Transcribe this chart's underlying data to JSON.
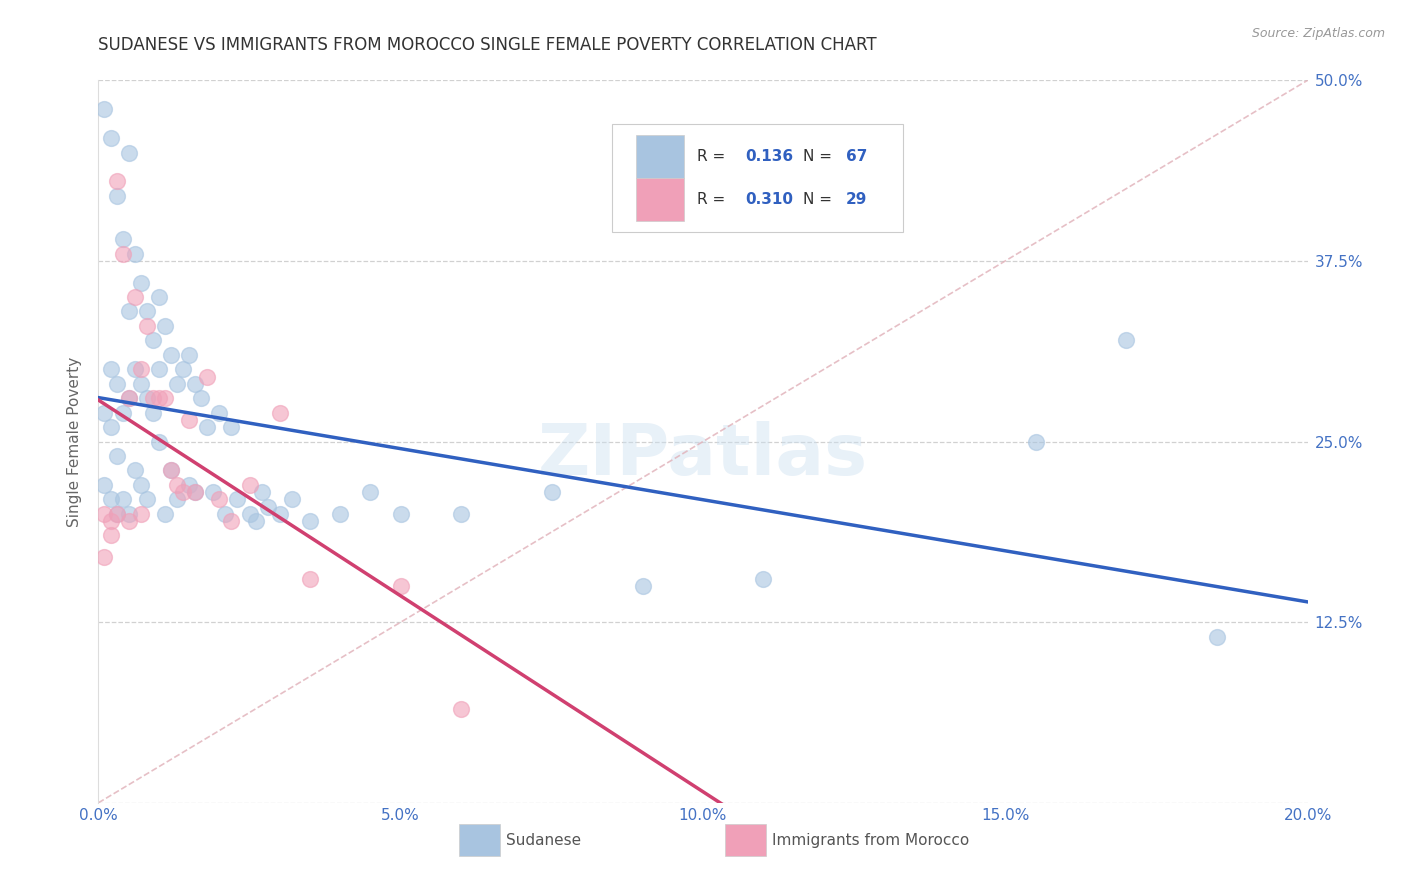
{
  "title": "SUDANESE VS IMMIGRANTS FROM MOROCCO SINGLE FEMALE POVERTY CORRELATION CHART",
  "source": "Source: ZipAtlas.com",
  "ylabel_label": "Single Female Poverty",
  "watermark": "ZIPatlas",
  "legend_label1": "Sudanese",
  "legend_label2": "Immigrants from Morocco",
  "color_sudanese": "#a8c4e0",
  "color_morocco": "#f0a0b8",
  "color_line_sudanese": "#3060c0",
  "color_line_morocco": "#d04070",
  "color_diag": "#e0b0b8",
  "sudanese_x": [
    0.001,
    0.001,
    0.001,
    0.002,
    0.002,
    0.002,
    0.002,
    0.003,
    0.003,
    0.003,
    0.003,
    0.004,
    0.004,
    0.004,
    0.005,
    0.005,
    0.005,
    0.005,
    0.006,
    0.006,
    0.006,
    0.007,
    0.007,
    0.007,
    0.008,
    0.008,
    0.008,
    0.009,
    0.009,
    0.01,
    0.01,
    0.01,
    0.011,
    0.011,
    0.012,
    0.012,
    0.013,
    0.013,
    0.014,
    0.015,
    0.015,
    0.016,
    0.016,
    0.017,
    0.018,
    0.019,
    0.02,
    0.021,
    0.022,
    0.023,
    0.025,
    0.026,
    0.027,
    0.028,
    0.03,
    0.032,
    0.035,
    0.04,
    0.045,
    0.05,
    0.06,
    0.075,
    0.09,
    0.11,
    0.155,
    0.17,
    0.185
  ],
  "sudanese_y": [
    0.48,
    0.27,
    0.22,
    0.46,
    0.3,
    0.26,
    0.21,
    0.42,
    0.29,
    0.24,
    0.2,
    0.39,
    0.27,
    0.21,
    0.45,
    0.34,
    0.28,
    0.2,
    0.38,
    0.3,
    0.23,
    0.36,
    0.29,
    0.22,
    0.34,
    0.28,
    0.21,
    0.32,
    0.27,
    0.35,
    0.3,
    0.25,
    0.33,
    0.2,
    0.31,
    0.23,
    0.29,
    0.21,
    0.3,
    0.31,
    0.22,
    0.29,
    0.215,
    0.28,
    0.26,
    0.215,
    0.27,
    0.2,
    0.26,
    0.21,
    0.2,
    0.195,
    0.215,
    0.205,
    0.2,
    0.21,
    0.195,
    0.2,
    0.215,
    0.2,
    0.2,
    0.215,
    0.15,
    0.155,
    0.25,
    0.32,
    0.115
  ],
  "morocco_x": [
    0.001,
    0.001,
    0.002,
    0.002,
    0.003,
    0.003,
    0.004,
    0.005,
    0.005,
    0.006,
    0.007,
    0.007,
    0.008,
    0.009,
    0.01,
    0.011,
    0.012,
    0.013,
    0.014,
    0.015,
    0.016,
    0.018,
    0.02,
    0.022,
    0.025,
    0.03,
    0.035,
    0.05,
    0.06
  ],
  "morocco_y": [
    0.2,
    0.17,
    0.195,
    0.185,
    0.43,
    0.2,
    0.38,
    0.28,
    0.195,
    0.35,
    0.3,
    0.2,
    0.33,
    0.28,
    0.28,
    0.28,
    0.23,
    0.22,
    0.215,
    0.265,
    0.215,
    0.295,
    0.21,
    0.195,
    0.22,
    0.27,
    0.155,
    0.15,
    0.065
  ],
  "xlim": [
    0.0,
    0.2
  ],
  "ylim": [
    0.0,
    0.5
  ],
  "xticks": [
    0.0,
    0.05,
    0.1,
    0.15,
    0.2
  ],
  "yticks": [
    0.0,
    0.125,
    0.25,
    0.375,
    0.5
  ],
  "xticklabels": [
    "0.0%",
    "5.0%",
    "10.0%",
    "15.0%",
    "20.0%"
  ],
  "yticklabels_right": [
    "",
    "12.5%",
    "25.0%",
    "37.5%",
    "50.0%"
  ],
  "tick_color": "#4472c4",
  "title_fontsize": 12,
  "axis_label_fontsize": 11,
  "tick_fontsize": 11
}
